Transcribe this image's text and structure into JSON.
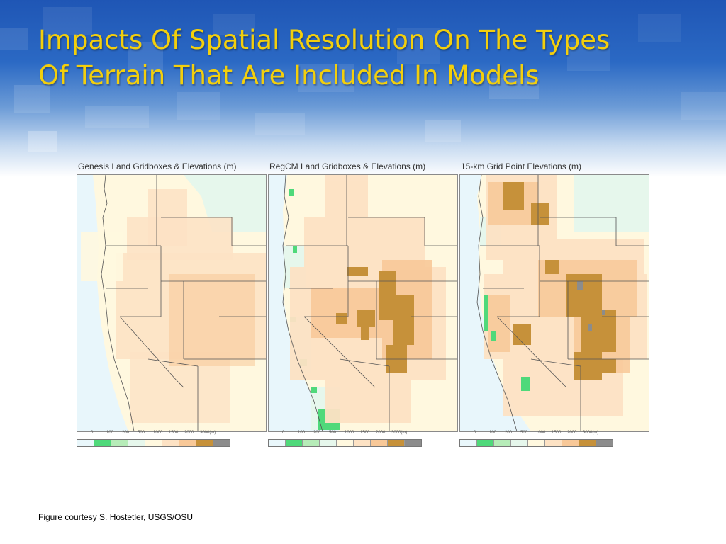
{
  "slide": {
    "title_line1": "Impacts Of Spatial Resolution On The Types",
    "title_line2": "Of Terrain That Are Included In Models",
    "caption": "Figure courtesy S. Hostetler, USGS/OSU",
    "title_color": "#f3cf0c"
  },
  "legend": {
    "ticks": [
      "0",
      "100",
      "200",
      "500",
      "1000",
      "1500",
      "2000",
      "3000(m)"
    ],
    "colors": [
      "#e9f7fb",
      "#4fd97a",
      "#b6ecb8",
      "#e6f7ec",
      "#fff8df",
      "#fde2c4",
      "#f8c898",
      "#c6913a",
      "#8c8c8c"
    ]
  },
  "panels": [
    {
      "title": "Genesis Land Gridboxes & Elevations (m)"
    },
    {
      "title": "RegCM Land Gridboxes & Elevations (m)"
    },
    {
      "title": "15-km Grid Point Elevations (m)"
    }
  ]
}
